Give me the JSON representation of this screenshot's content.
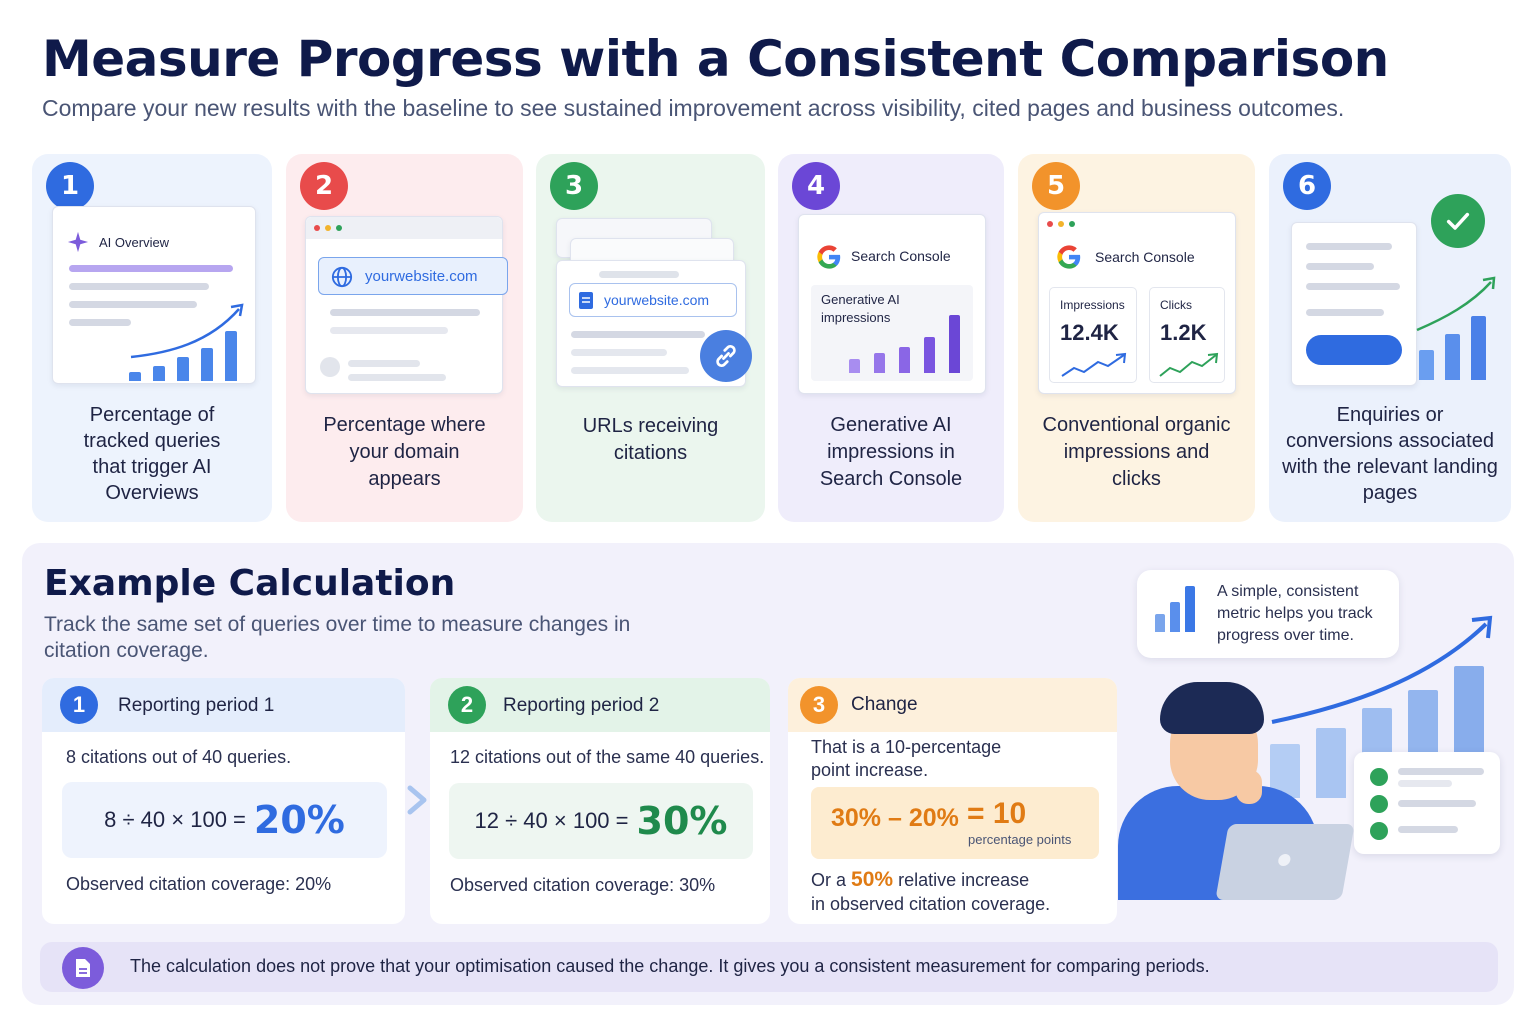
{
  "header": {
    "title": "Measure Progress with a Consistent Comparison",
    "subtitle": "Compare your new results with the baseline to see sustained improvement across visibility, cited pages and business outcomes."
  },
  "colors": {
    "blue": "#2f6be0",
    "red": "#e84b4b",
    "green": "#2ea25a",
    "purple": "#6b47d6",
    "orange": "#f2932b",
    "navy": "#0f1a4a"
  },
  "metrics": [
    {
      "number": "1",
      "caption": "Percentage of tracked queries that trigger AI Overviews",
      "mock_label": "AI Overview",
      "icon": "sparkle-icon"
    },
    {
      "number": "2",
      "caption": "Percentage where your domain appears",
      "mock_label": "yourwebsite.com",
      "icon": "globe-icon"
    },
    {
      "number": "3",
      "caption": "URLs receiving citations",
      "mock_label": "yourwebsite.com",
      "icon": "link-icon"
    },
    {
      "number": "4",
      "caption": "Generative AI impressions in Search Console",
      "mock_label": "Search Console",
      "mock_sub": "Generative AI impressions",
      "icon": "google-icon"
    },
    {
      "number": "5",
      "caption": "Conventional organic impressions and clicks",
      "mock_label": "Search Console",
      "impressions_label": "Impressions",
      "impressions_value": "12.4K",
      "clicks_label": "Clicks",
      "clicks_value": "1.2K",
      "icon": "google-icon"
    },
    {
      "number": "6",
      "caption": "Enquiries or conversions associated with the relevant landing pages",
      "icon": "check-icon"
    }
  ],
  "example": {
    "title": "Example Calculation",
    "subtitle": "Track the same set of queries over time to measure changes in citation coverage.",
    "period1": {
      "number": "1",
      "label": "Reporting period 1",
      "desc": "8 citations out of 40 queries.",
      "expr": "8 ÷ 40 × 100 =",
      "result": "20%",
      "observed": "Observed citation coverage: 20%"
    },
    "period2": {
      "number": "2",
      "label": "Reporting period 2",
      "desc": "12 citations out of the same 40 queries.",
      "expr": "12 ÷ 40 × 100 =",
      "result": "30%",
      "observed": "Observed citation coverage: 30%"
    },
    "change": {
      "number": "3",
      "label": "Change",
      "desc": "That is a 10-percentage point increase.",
      "expr": "30% – 20%",
      "equals": "= 10",
      "unit": "percentage points",
      "rel_prefix": "Or a",
      "rel_value": "50%",
      "rel_suffix": "relative increase",
      "rel_line2": "in observed citation coverage."
    },
    "bubble": "A simple, consistent metric helps you track progress over time.",
    "note": "The calculation does not prove that your optimisation caused the change. It gives you a consistent measurement for comparing periods."
  }
}
